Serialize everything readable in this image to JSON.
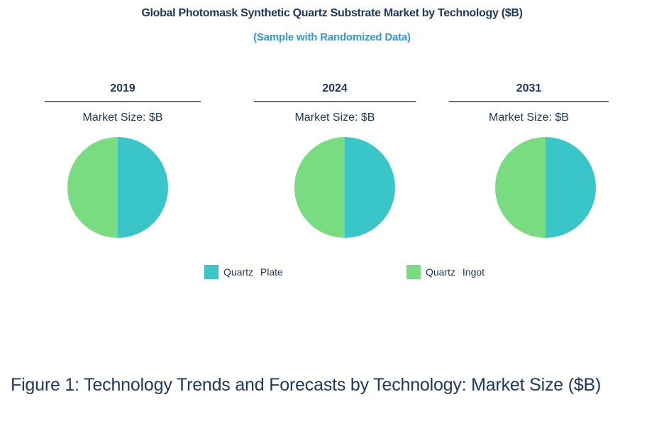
{
  "title": "Global Photomask Synthetic Quartz Substrate Market by Technology ($B)",
  "subtitle": "(Sample with Randomized Data)",
  "caption": "Figure 1: Technology Trends and Forecasts by Technology: Market Size ($B)",
  "colors": {
    "title_navy": "#1F3864",
    "subtitle_blue": "#2E9AD6",
    "quartz_plate_teal": "#3AC5C9",
    "quartz_ingot_green": "#7ADC80",
    "divider_gray": "#6E6E6E"
  },
  "legend": {
    "items": [
      {
        "label": "Quartz Plate",
        "color": "#3AC5C9"
      },
      {
        "label": "Quartz Ingot",
        "color": "#7ADC80"
      }
    ]
  },
  "chart_data": [
    {
      "type": "pie",
      "title": "2019",
      "metric_label": "Market Size: $B",
      "labels": [
        "Quartz Plate",
        "Quartz Ingot"
      ],
      "values": [
        50,
        50
      ],
      "colors": [
        "#3AC5C9",
        "#7ADC80"
      ],
      "legend_position": "bottom",
      "note": "share of market size, percent"
    },
    {
      "type": "pie",
      "title": "2024",
      "metric_label": "Market Size: $B",
      "labels": [
        "Quartz Plate",
        "Quartz Ingot"
      ],
      "values": [
        50,
        50
      ],
      "colors": [
        "#3AC5C9",
        "#7ADC80"
      ],
      "legend_position": "bottom",
      "note": "share of market size, percent"
    },
    {
      "type": "pie",
      "title": "2031",
      "metric_label": "Market Size: $B",
      "labels": [
        "Quartz Plate",
        "Quartz Ingot"
      ],
      "values": [
        50,
        50
      ],
      "colors": [
        "#3AC5C9",
        "#7ADC80"
      ],
      "legend_position": "bottom",
      "note": "share of market size, percent"
    }
  ]
}
